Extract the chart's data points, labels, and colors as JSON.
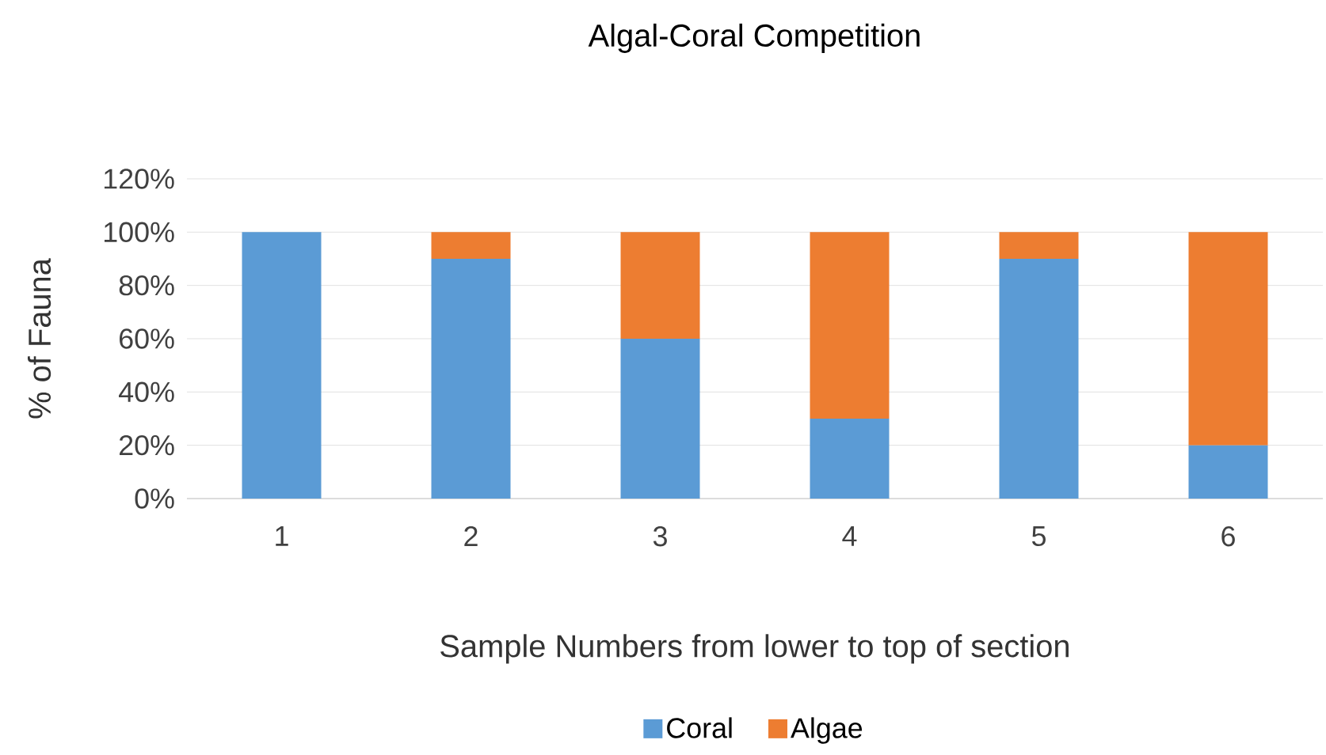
{
  "chart_data": {
    "type": "bar",
    "title": "Algal-Coral Competition",
    "xlabel": "Sample Numbers from lower to top of section",
    "ylabel": "% of Fauna",
    "categories": [
      "1",
      "2",
      "3",
      "4",
      "5",
      "6"
    ],
    "series": [
      {
        "name": "Coral",
        "color": "#5b9bd5",
        "values": [
          100,
          90,
          60,
          30,
          90,
          20
        ]
      },
      {
        "name": "Algae",
        "color": "#ed7d31",
        "values": [
          0,
          10,
          40,
          70,
          10,
          80
        ]
      }
    ],
    "stacked": true,
    "ylim": [
      0,
      120
    ],
    "yticks": [
      {
        "value": 0,
        "label": "0%"
      },
      {
        "value": 20,
        "label": "20%"
      },
      {
        "value": 40,
        "label": "40%"
      },
      {
        "value": 60,
        "label": "60%"
      },
      {
        "value": 80,
        "label": "80%"
      },
      {
        "value": 100,
        "label": "100%"
      },
      {
        "value": 120,
        "label": "120%"
      }
    ],
    "grid": "y",
    "legend": "bottom"
  }
}
